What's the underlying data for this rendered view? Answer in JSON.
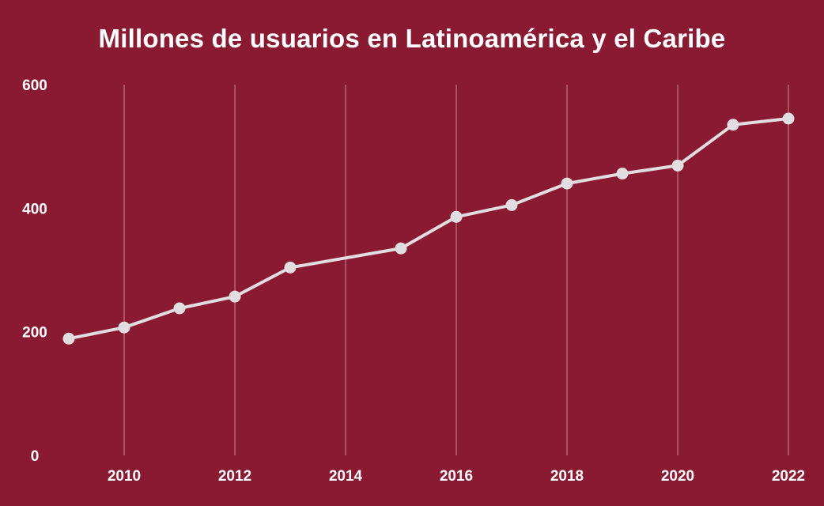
{
  "chart_data": {
    "type": "line",
    "title": "Millones de usuarios en Latinoamérica y el Caribe",
    "xlabel": "",
    "ylabel": "",
    "x": [
      2009,
      2010,
      2011,
      2012,
      2013,
      2015,
      2016,
      2017,
      2018,
      2019,
      2020,
      2021,
      2022
    ],
    "series": [
      {
        "values": [
          189,
          207,
          238,
          257,
          304,
          335,
          386,
          405,
          440,
          456,
          469,
          535,
          545
        ]
      }
    ],
    "xlim": [
      2009,
      2022
    ],
    "ylim": [
      0,
      600
    ],
    "xticks": [
      2010,
      2012,
      2014,
      2016,
      2018,
      2020,
      2022
    ],
    "yticks": [
      0,
      200,
      400,
      600
    ],
    "grid": "vertical",
    "legend": "none",
    "colors": {
      "background": "#8a1a31",
      "line": "#e2dde0",
      "grid": "#c98a96",
      "text": "#ffffff"
    }
  }
}
